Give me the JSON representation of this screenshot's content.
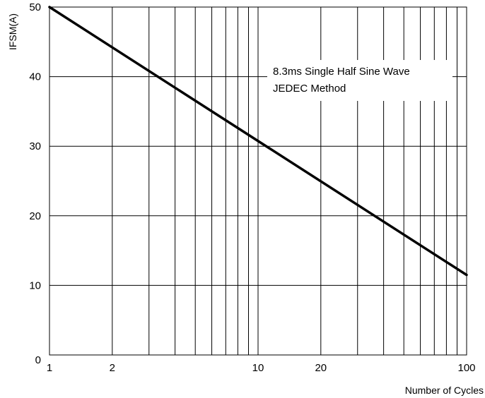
{
  "chart_data": {
    "type": "line",
    "title": "",
    "xlabel": "Number of Cycles",
    "ylabel": "IFSM(A)",
    "x_scale": "log",
    "xlim": [
      1,
      100
    ],
    "ylim": [
      0,
      50
    ],
    "grid": true,
    "x_tick_labels": [
      "1",
      "2",
      "10",
      "20",
      "100"
    ],
    "y_tick_labels": [
      "0",
      "10",
      "20",
      "30",
      "40",
      "50"
    ],
    "annotations": [
      "8.3ms Single Half Sine Wave",
      "JEDEC Method"
    ],
    "series": [
      {
        "x": [
          1,
          100
        ],
        "y": [
          50,
          11.5
        ]
      }
    ],
    "colors": {
      "line": "#000000",
      "grid": "#000000",
      "background": "#ffffff"
    }
  }
}
